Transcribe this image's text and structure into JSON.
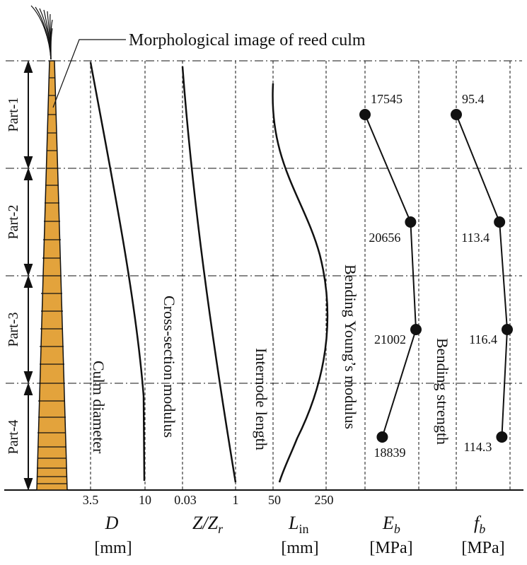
{
  "callout": "Morphological image of reed culm",
  "parts": [
    "Part-1",
    "Part-2",
    "Part-3",
    "Part-4"
  ],
  "panels": {
    "D": {
      "vertical_label": "Culm diameter",
      "symbol": "D",
      "unit": "[mm]",
      "ticks": [
        "3.5",
        "10"
      ]
    },
    "Z": {
      "vertical_label": "Cross-section modulus",
      "symbol_main": "Z/Z",
      "symbol_sub": "r",
      "ticks": [
        "0.03",
        "1"
      ]
    },
    "L": {
      "vertical_label": "Internode length",
      "symbol_main": "L",
      "symbol_sub": "in",
      "unit": "[mm]",
      "ticks": [
        "50",
        "250"
      ]
    },
    "E": {
      "vertical_label": "Bending Young’s modulus",
      "symbol_main": "E",
      "symbol_sub": "b",
      "unit": "[MPa]"
    },
    "F": {
      "vertical_label": "Bending strength",
      "symbol_main": "f",
      "symbol_sub": "b",
      "unit": "[MPa]"
    }
  },
  "chart_data": [
    {
      "type": "scatter",
      "title": "",
      "xlabel": "E_b [MPa]",
      "series": [
        {
          "categories": [
            "Part-1",
            "Part-2",
            "Part-3",
            "Part-4"
          ],
          "values": [
            17545,
            20656,
            21002,
            18839
          ]
        }
      ],
      "labels": [
        "17545",
        "20656",
        "21002",
        "18839"
      ]
    },
    {
      "type": "scatter",
      "title": "",
      "xlabel": "f_b [MPa]",
      "series": [
        {
          "categories": [
            "Part-1",
            "Part-2",
            "Part-3",
            "Part-4"
          ],
          "values": [
            95.4,
            113.4,
            116.4,
            114.3
          ]
        }
      ],
      "labels": [
        "95.4",
        "113.4",
        "116.4",
        "114.3"
      ]
    }
  ],
  "colors": {
    "culm_fill": "#E3A33C",
    "line": "#111111"
  }
}
